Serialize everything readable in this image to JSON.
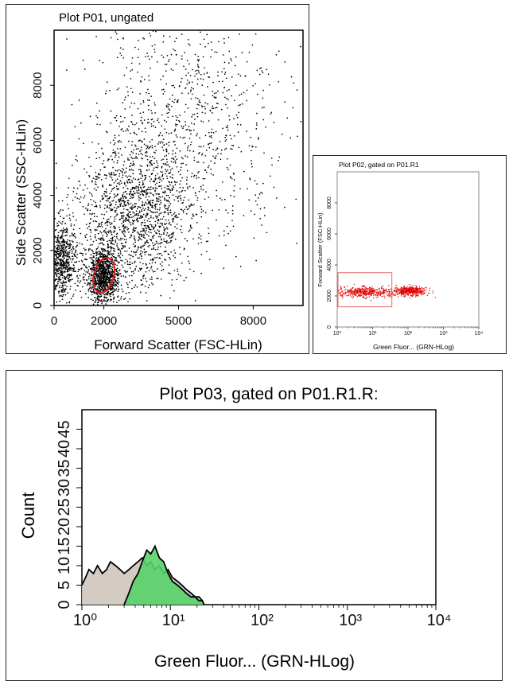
{
  "colors": {
    "p01_points": "#000000",
    "p01_gate": "#e21b1b",
    "p02_points": "#e00000",
    "p02_gate": "#e46b6b",
    "p03_gated_fill": "#58d26a",
    "p03_ungated_fill": "#cfc6bd",
    "axis": "#000000"
  },
  "chart_data": [
    {
      "id": "P01",
      "type": "scatter",
      "title": "Plot P01, ungated",
      "xlabel": "Forward Scatter (FSC-HLin)",
      "ylabel": "Side Scatter (SSC-HLin)",
      "xlim": [
        0,
        10000
      ],
      "ylim": [
        0,
        10000
      ],
      "x_ticks": [
        0,
        2000,
        5000,
        8000
      ],
      "x_tick_labels": [
        "0",
        "2000",
        "5000",
        "8000"
      ],
      "y_ticks": [
        0,
        2000,
        4000,
        6000,
        8000
      ],
      "y_tick_labels": [
        "0",
        "2000",
        "4000",
        "6000",
        "8000"
      ],
      "point_color": "black",
      "clusters": [
        {
          "center": [
            2000,
            1100
          ],
          "spread": [
            330,
            500
          ],
          "approx_points": 1000
        },
        {
          "center": [
            300,
            1600
          ],
          "spread": [
            320,
            700
          ],
          "approx_points": 700
        },
        {
          "center": [
            3200,
            3300
          ],
          "spread": [
            1150,
            1400
          ],
          "approx_points": 1500
        },
        {
          "center": [
            5500,
            6800
          ],
          "spread": [
            2000,
            2100
          ],
          "approx_points": 900
        }
      ],
      "gate": {
        "name": "R1",
        "shape": "ellipse",
        "center": [
          2000,
          1100
        ],
        "radii": [
          400,
          650
        ],
        "rotation_deg": 15,
        "color": "red"
      }
    },
    {
      "id": "P02",
      "type": "scatter",
      "title": "Plot P02, gated on P01.R1",
      "xlabel": "Green Fluor... (GRN-HLog)",
      "ylabel": "Forward Scatter (FSC-HLin)",
      "x_scale": "log",
      "xlim": [
        1,
        10000
      ],
      "ylim": [
        0,
        10000
      ],
      "x_ticks": [
        1,
        10,
        100,
        1000,
        10000
      ],
      "x_tick_labels": [
        "10⁰",
        "10¹",
        "10²",
        "10³",
        "10⁴"
      ],
      "y_ticks": [
        0,
        2000,
        4000,
        6000,
        8000
      ],
      "y_tick_labels": [
        "0",
        "2000",
        "4000",
        "6000",
        "8000"
      ],
      "point_color": "red",
      "clusters": [
        {
          "center": [
            6,
            2250
          ],
          "spread": [
            0.45,
            160
          ],
          "approx_points": 420
        },
        {
          "center": [
            120,
            2300
          ],
          "spread": [
            0.22,
            150
          ],
          "approx_points": 380
        }
      ],
      "gate": {
        "name": "R",
        "shape": "rectangle",
        "x": [
          1,
          35
        ],
        "y": [
          1300,
          3500
        ]
      }
    },
    {
      "id": "P03",
      "type": "area",
      "title": "Plot P03, gated on P01.R1.R:",
      "xlabel": "Green Fluor... (GRN-HLog)",
      "ylabel": "Count",
      "x_scale": "log",
      "xlim": [
        1,
        10000
      ],
      "ylim": [
        0,
        50
      ],
      "x_ticks": [
        1,
        10,
        100,
        1000,
        10000
      ],
      "x_tick_labels": [
        "10⁰",
        "10¹",
        "10²",
        "10³",
        "10⁴"
      ],
      "y_ticks": [
        0,
        5,
        10,
        15,
        20,
        25,
        30,
        35,
        40,
        45
      ],
      "y_tick_labels": [
        "0",
        "5",
        "10",
        "15",
        "20",
        "25",
        "30",
        "35",
        "40",
        "45"
      ],
      "series": [
        {
          "fill": "gray",
          "x": [
            1.0,
            1.1,
            1.2,
            1.35,
            1.5,
            1.7,
            1.9,
            2.1,
            2.4,
            2.7,
            3.0,
            3.4,
            3.8,
            4.3,
            4.8,
            5.4,
            6.0,
            6.7,
            7.5,
            8.4,
            9.4,
            10.5,
            12,
            13.5,
            15,
            17,
            19,
            21,
            23,
            24
          ],
          "values": [
            5,
            7,
            9,
            8,
            10,
            8,
            9,
            11,
            10,
            9,
            8,
            9,
            10,
            11,
            12,
            10,
            11,
            9,
            10,
            8,
            9,
            7,
            6,
            5,
            4,
            3,
            2,
            2,
            1,
            0
          ]
        },
        {
          "fill": "green",
          "x": [
            3.0,
            3.4,
            3.8,
            4.3,
            4.8,
            5.4,
            6.0,
            6.7,
            7.5,
            8.4,
            9.4,
            10.5,
            12,
            13.5,
            15,
            17,
            19,
            21,
            23,
            24
          ],
          "values": [
            0,
            3,
            6,
            8,
            11,
            14,
            13,
            15,
            12,
            11,
            8,
            6,
            5,
            4,
            3,
            2,
            2,
            1,
            1,
            0
          ]
        }
      ]
    }
  ]
}
